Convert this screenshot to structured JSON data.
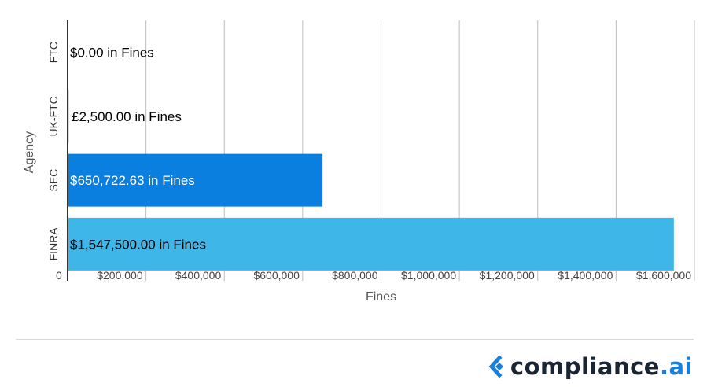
{
  "chart_data": {
    "type": "bar",
    "orientation": "horizontal",
    "categories": [
      "FTC",
      "UK-FTC",
      "SEC",
      "FINRA"
    ],
    "values": [
      0,
      2500,
      650722.63,
      1547500
    ],
    "data_labels": [
      "$0.00 in Fines",
      "£2,500.00 in Fines",
      "$650,722.63 in Fines",
      "$1,547,500.00 in Fines"
    ],
    "bar_colors": [
      "#0e7fd9",
      "#0e7fd9",
      "#0a7fe0",
      "#3fb6e8"
    ],
    "label_colors": [
      "#000000",
      "#000000",
      "#ffffff",
      "#000000"
    ],
    "xlabel": "Fines",
    "ylabel": "Agency",
    "xlim": [
      0,
      1600000
    ],
    "x_ticks": [
      0,
      200000,
      400000,
      600000,
      800000,
      1000000,
      1200000,
      1400000,
      1600000
    ],
    "x_tick_labels": [
      "0",
      "$200,000",
      "$400,000",
      "$600,000",
      "$800,000",
      "$1,000,000",
      "$1,200,000",
      "$1,400,000",
      "$1,600,000"
    ],
    "grid": true,
    "legend": "none"
  },
  "footer": {
    "brand_prefix": "compliance",
    "brand_accent": ".ai",
    "brand_color": "#1a7fd9",
    "icon": "compliance-logo-icon"
  }
}
